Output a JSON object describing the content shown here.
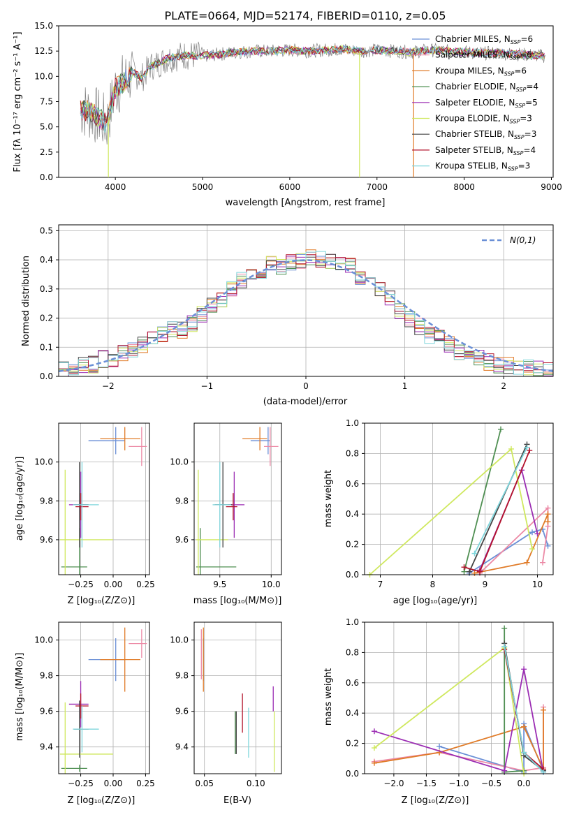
{
  "figure_title": "PLATE=0664, MJD=52174, FIBERID=0110, z=0.05",
  "model_colors": [
    "#6a8fd6",
    "#ec8aa6",
    "#e07b28",
    "#4f8f52",
    "#9b2db3",
    "#cfe85e",
    "#444444",
    "#b3132b",
    "#7fd6dc"
  ],
  "chart_data": [
    {
      "type": "line",
      "title": "PLATE=0664, MJD=52174, FIBERID=0110, z=0.05",
      "xlabel": "wavelength [Angstrom, rest frame]",
      "ylabel": "Flux [fλ 10⁻¹⁷ erg cm⁻² s⁻¹ A⁻¹]",
      "xlim": [
        3350,
        9020
      ],
      "ylim": [
        0,
        15
      ],
      "xticks": [
        4000,
        5000,
        6000,
        7000,
        8000,
        9000
      ],
      "yticks": [
        0.0,
        2.5,
        5.0,
        7.5,
        10.0,
        12.5,
        15.0
      ],
      "legend_position": "upper-right",
      "legend": [
        "Chabrier MILES, N_SSP=6",
        "Salpeter MILES, N_SSP=6",
        "Kroupa MILES, N_SSP=6",
        "Chabrier ELODIE, N_SSP=4",
        "Salpeter ELODIE, N_SSP=5",
        "Kroupa ELODIE, N_SSP=3",
        "Chabrier STELIB, N_SSP=3",
        "Salpeter STELIB, N_SSP=4",
        "Kroupa STELIB, N_SSP=3"
      ],
      "data_curve_x": [
        3600,
        3700,
        3800,
        3900,
        3950,
        4000,
        4100,
        4200,
        4300,
        4400,
        4500,
        4600,
        4800,
        5000,
        5200,
        5400,
        5600,
        5800,
        6000,
        6200,
        6400,
        6600,
        6800,
        7000,
        7200,
        7400,
        7600,
        7800,
        8000,
        8200,
        8400,
        8600,
        8800,
        8930
      ],
      "data_curve_y": [
        6.8,
        6.5,
        6.0,
        5.2,
        7.0,
        8.8,
        9.5,
        10.4,
        9.8,
        11.0,
        11.3,
        11.8,
        12.1,
        12.0,
        12.2,
        12.4,
        12.5,
        12.5,
        12.6,
        12.5,
        12.6,
        12.7,
        12.5,
        12.6,
        12.5,
        12.4,
        12.6,
        12.5,
        12.4,
        12.3,
        12.3,
        12.2,
        12.1,
        12.0
      ]
    },
    {
      "type": "histogram",
      "xlabel": "(data-model)/error",
      "ylabel": "Normed distribution",
      "xlim": [
        -2.5,
        2.5
      ],
      "ylim": [
        0,
        0.52
      ],
      "xticks": [
        -2,
        -1,
        0,
        1,
        2
      ],
      "yticks": [
        0.0,
        0.1,
        0.2,
        0.3,
        0.4,
        0.5
      ],
      "legend_position": "upper-right",
      "legend": [
        "N(0,1)"
      ],
      "bin_width": 0.1,
      "bin_start": -2.5,
      "bin_values": [
        0.02,
        0.03,
        0.04,
        0.04,
        0.06,
        0.06,
        0.08,
        0.09,
        0.11,
        0.13,
        0.14,
        0.16,
        0.16,
        0.18,
        0.21,
        0.24,
        0.26,
        0.3,
        0.33,
        0.36,
        0.36,
        0.39,
        0.38,
        0.39,
        0.4,
        0.41,
        0.4,
        0.4,
        0.39,
        0.38,
        0.34,
        0.33,
        0.3,
        0.27,
        0.22,
        0.2,
        0.17,
        0.14,
        0.13,
        0.11,
        0.08,
        0.07,
        0.06,
        0.05,
        0.04,
        0.04,
        0.03,
        0.03,
        0.03,
        0.02
      ],
      "gaussian_name": "N(0,1)"
    },
    {
      "type": "errorbar",
      "xlabel": "Z [log₁₀(Z/Z⊙)]",
      "ylabel": "age  [log₁₀(age/yr)]",
      "xlim": [
        -0.42,
        0.28
      ],
      "ylim": [
        9.42,
        10.2
      ],
      "xticks": [
        "-0.25",
        "0.00",
        "0.25"
      ],
      "yticks": [
        "9.6",
        "9.8",
        "10.0"
      ],
      "points": [
        {
          "x": 0.02,
          "y": 10.11,
          "xerr": [
            0.21,
            0.07
          ],
          "yerr": 0.07
        },
        {
          "x": 0.22,
          "y": 10.08,
          "xerr": [
            0.1,
            0.04
          ],
          "yerr": 0.1
        },
        {
          "x": 0.09,
          "y": 10.12,
          "xerr": [
            0.19,
            0.12
          ],
          "yerr": 0.06
        },
        {
          "x": -0.26,
          "y": 9.46,
          "xerr": [
            0.14,
            0.06
          ],
          "yerr": 0.2
        },
        {
          "x": -0.25,
          "y": 9.78,
          "xerr": [
            0.09,
            0.06
          ],
          "yerr": 0.17
        },
        {
          "x": -0.37,
          "y": 9.6,
          "xerr": [
            0.04,
            0.37
          ],
          "yerr": 0.36
        },
        {
          "x": -0.26,
          "y": 9.78,
          "xerr": [
            0.04,
            0.07
          ],
          "yerr": 0.22
        },
        {
          "x": -0.25,
          "y": 9.77,
          "xerr": [
            0.04,
            0.06
          ],
          "yerr": 0.07
        },
        {
          "x": -0.24,
          "y": 9.78,
          "xerr": [
            0.07,
            0.13
          ],
          "yerr": 0.22
        }
      ]
    },
    {
      "type": "errorbar",
      "xlabel": "mass [log₁₀(M/M⊙)]",
      "xlim": [
        9.25,
        10.1
      ],
      "ylim": [
        9.42,
        10.2
      ],
      "xticks": [
        "9.5",
        "10.0"
      ],
      "yticks": [
        "9.6",
        "9.8",
        "10.0"
      ],
      "points": [
        {
          "x": 9.97,
          "y": 10.11,
          "xerr": [
            0.17,
            0.02
          ],
          "yerr": 0.07
        },
        {
          "x": 9.99,
          "y": 10.08,
          "xerr": [
            0.06,
            0.08
          ],
          "yerr": 0.1
        },
        {
          "x": 9.89,
          "y": 10.12,
          "xerr": [
            0.17,
            0.07
          ],
          "yerr": 0.06
        },
        {
          "x": 9.31,
          "y": 9.46,
          "xerr": [
            0.04,
            0.35
          ],
          "yerr": 0.2
        },
        {
          "x": 9.64,
          "y": 9.78,
          "xerr": [
            0.06,
            0.1
          ],
          "yerr": 0.17
        },
        {
          "x": 9.29,
          "y": 9.6,
          "xerr": [
            0.02,
            0.29
          ],
          "yerr": 0.36
        },
        {
          "x": 9.53,
          "y": 9.78,
          "xerr": [
            0.08,
            0.09
          ],
          "yerr": 0.22
        },
        {
          "x": 9.63,
          "y": 9.77,
          "xerr": [
            0.07,
            0.04
          ],
          "yerr": 0.07
        },
        {
          "x": 9.5,
          "y": 9.78,
          "xerr": [
            0.07,
            0.11
          ],
          "yerr": 0.22
        }
      ]
    },
    {
      "type": "line",
      "xlabel": "age  [log₁₀(age/yr)]",
      "ylabel": "mass weight",
      "xlim": [
        6.7,
        10.3
      ],
      "ylim": [
        0,
        1
      ],
      "xticks": [
        7,
        8,
        9,
        10
      ],
      "yticks": [
        "0.0",
        "0.2",
        "0.4",
        "0.6",
        "0.8",
        "1.0"
      ],
      "series": [
        {
          "x": [
            8.7,
            9.9,
            10.1,
            10.2
          ],
          "y": [
            0.01,
            0.28,
            0.3,
            0.19
          ]
        },
        {
          "x": [
            8.9,
            10.2,
            10.2,
            10.1
          ],
          "y": [
            0.01,
            0.44,
            0.32,
            0.08
          ]
        },
        {
          "x": [
            8.8,
            9.8,
            10.2,
            10.2
          ],
          "y": [
            0.01,
            0.08,
            0.4,
            0.35
          ]
        },
        {
          "x": [
            8.6,
            9.3
          ],
          "y": [
            0.02,
            0.96
          ]
        },
        {
          "x": [
            8.9,
            9.7,
            10.0
          ],
          "y": [
            0.03,
            0.69,
            0.27
          ]
        },
        {
          "x": [
            6.8,
            9.5,
            9.9
          ],
          "y": [
            0.0,
            0.83,
            0.17
          ]
        },
        {
          "x": [
            8.7,
            9.8
          ],
          "y": [
            0.02,
            0.86
          ]
        },
        {
          "x": [
            8.6,
            8.9,
            9.85
          ],
          "y": [
            0.05,
            0.02,
            0.82
          ]
        },
        {
          "x": [
            8.8,
            9.8
          ],
          "y": [
            0.14,
            0.84
          ]
        }
      ]
    },
    {
      "type": "errorbar",
      "xlabel": "Z [log₁₀(Z/Z⊙)]",
      "ylabel": "mass [log₁₀(M/M⊙)]",
      "xlim": [
        -0.42,
        0.28
      ],
      "ylim": [
        9.25,
        10.1
      ],
      "xticks": [
        "-0.25",
        "0.00",
        "0.25"
      ],
      "yticks": [
        "9.4",
        "9.6",
        "9.8",
        "10.0"
      ],
      "points": [
        {
          "x": 0.02,
          "y": 9.89,
          "xerr": [
            0.21,
            0.07
          ],
          "yerr": 0.12
        },
        {
          "x": 0.22,
          "y": 9.98,
          "xerr": [
            0.1,
            0.04
          ],
          "yerr": 0.08
        },
        {
          "x": 0.09,
          "y": 9.89,
          "xerr": [
            0.19,
            0.12
          ],
          "yerr": 0.18
        },
        {
          "x": -0.26,
          "y": 9.28,
          "xerr": [
            0.14,
            0.06
          ],
          "yerr": 0.02
        },
        {
          "x": -0.25,
          "y": 9.64,
          "xerr": [
            0.09,
            0.06
          ],
          "yerr": 0.13
        },
        {
          "x": -0.37,
          "y": 9.36,
          "xerr": [
            0.04,
            0.37
          ],
          "yerr": 0.29
        },
        {
          "x": -0.26,
          "y": 9.5,
          "xerr": [
            0.04,
            0.07
          ],
          "yerr": 0.16
        },
        {
          "x": -0.25,
          "y": 9.63,
          "xerr": [
            0.04,
            0.06
          ],
          "yerr": 0.07
        },
        {
          "x": -0.24,
          "y": 9.5,
          "xerr": [
            0.07,
            0.13
          ],
          "yerr": 0.13
        }
      ]
    },
    {
      "type": "errorbar",
      "xlabel": "E(B-V)",
      "xlim": [
        0.04,
        0.125
      ],
      "ylim": [
        9.25,
        10.1
      ],
      "xticks": [
        "0.05",
        "0.10"
      ],
      "yticks": [
        "9.4",
        "9.6",
        "9.8",
        "10.0"
      ],
      "points": [
        {
          "x": 0.049,
          "y": 9.89,
          "yerr": 0.12
        },
        {
          "x": 0.047,
          "y": 9.92,
          "yerr": 0.14
        },
        {
          "x": 0.049,
          "y": 9.89,
          "yerr": 0.18
        },
        {
          "x": 0.08,
          "y": 9.48,
          "yerr": 0.12
        },
        {
          "x": 0.117,
          "y": 9.67,
          "yerr": 0.07
        },
        {
          "x": 0.118,
          "y": 9.43,
          "yerr": 0.17
        },
        {
          "x": 0.081,
          "y": 9.48,
          "yerr": 0.12
        },
        {
          "x": 0.087,
          "y": 9.59,
          "yerr": 0.11
        },
        {
          "x": 0.093,
          "y": 9.48,
          "yerr": 0.14
        }
      ]
    },
    {
      "type": "line",
      "xlabel": "Z [log₁₀(Z/Z⊙)]",
      "ylabel": "mass weight",
      "xlim": [
        -2.45,
        0.45
      ],
      "ylim": [
        0,
        1
      ],
      "xticks": [
        "-2.0",
        "-1.5",
        "-1.0",
        "-0.5",
        "0.0"
      ],
      "yticks": [
        "0.0",
        "0.2",
        "0.4",
        "0.6",
        "0.8",
        "1.0"
      ],
      "series": [
        {
          "x": [
            -1.3,
            0.0,
            0.0,
            0.3
          ],
          "y": [
            0.18,
            0.01,
            0.33,
            0.02
          ]
        },
        {
          "x": [
            -2.3,
            -1.3,
            0.0,
            0.3,
            0.3
          ],
          "y": [
            0.08,
            0.14,
            0.02,
            0.04,
            0.44
          ]
        },
        {
          "x": [
            -2.3,
            -1.3,
            0.0,
            0.3,
            0.3
          ],
          "y": [
            0.07,
            0.14,
            0.31,
            0.03,
            0.42
          ]
        },
        {
          "x": [
            -0.3,
            -0.3,
            0.0
          ],
          "y": [
            0.96,
            0.01,
            0.02
          ]
        },
        {
          "x": [
            -2.3,
            -0.3,
            0.0,
            0.3
          ],
          "y": [
            0.28,
            0.02,
            0.69,
            0.01
          ]
        },
        {
          "x": [
            -2.3,
            -0.3,
            0.0
          ],
          "y": [
            0.17,
            0.83,
            0.0
          ]
        },
        {
          "x": [
            -0.3,
            0.0,
            0.3
          ],
          "y": [
            0.86,
            0.12,
            0.02
          ]
        },
        {
          "x": [
            -0.3,
            0.0,
            0.3
          ],
          "y": [
            0.82,
            0.14,
            0.03
          ]
        },
        {
          "x": [
            -0.3,
            0.0,
            0.3
          ],
          "y": [
            0.84,
            0.14,
            0.01
          ]
        }
      ]
    }
  ]
}
